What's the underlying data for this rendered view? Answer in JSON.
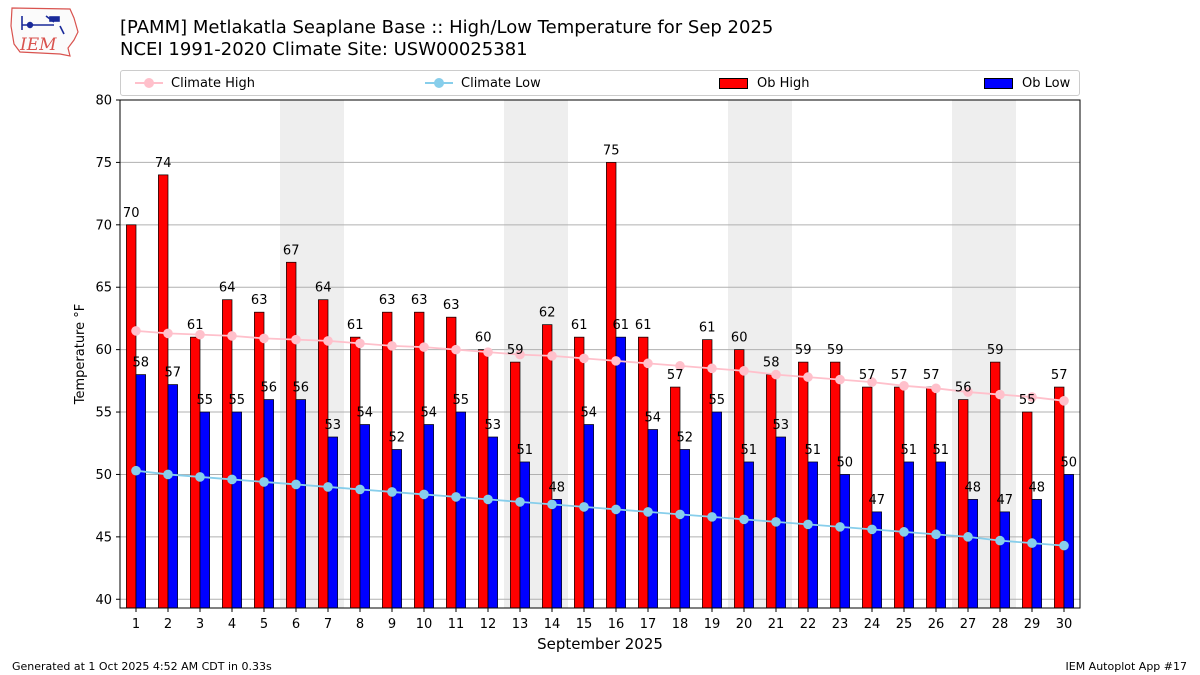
{
  "header": {
    "logo_text": "IEM",
    "title_line1": "[PAMM] Metlakatla Seaplane Base :: High/Low Temperature for Sep 2025",
    "title_line2": "NCEI 1991-2020 Climate Site: USW00025381"
  },
  "legend": {
    "climate_high": "Climate High",
    "climate_low": "Climate Low",
    "ob_high": "Ob High",
    "ob_low": "Ob Low"
  },
  "colors": {
    "ob_high": "#ff0000",
    "ob_low": "#0000ff",
    "climate_high": "#ffc0cb",
    "climate_low": "#87ceeb",
    "weekend_shade": "#eeeeee",
    "grid": "#b0b0b0"
  },
  "footer": {
    "generated": "Generated at 1 Oct 2025 4:52 AM CDT in 0.33s",
    "app": "IEM Autoplot App #17"
  },
  "chart_data": {
    "type": "bar",
    "xlabel": "September 2025",
    "ylabel": "Temperature °F",
    "ylim": [
      39.3,
      80
    ],
    "yticks": [
      40,
      45,
      50,
      55,
      60,
      65,
      70,
      75,
      80
    ],
    "grid": true,
    "categories": [
      "1",
      "2",
      "3",
      "4",
      "5",
      "6",
      "7",
      "8",
      "9",
      "10",
      "11",
      "12",
      "13",
      "14",
      "15",
      "16",
      "17",
      "18",
      "19",
      "20",
      "21",
      "22",
      "23",
      "24",
      "25",
      "26",
      "27",
      "28",
      "29",
      "30"
    ],
    "shaded_days": [
      6,
      7,
      13,
      14,
      20,
      21,
      27,
      28
    ],
    "series": [
      {
        "name": "Ob High",
        "kind": "bar",
        "values": [
          70,
          74,
          61,
          64,
          63,
          67,
          64,
          61,
          63,
          63,
          62.6,
          60,
          59,
          62,
          61,
          75,
          61,
          57,
          60.8,
          60,
          58,
          59,
          59,
          57,
          57,
          57,
          56,
          59,
          55,
          57
        ],
        "labels": [
          "70",
          "74",
          "61",
          "64",
          "63",
          "67",
          "64",
          "61",
          "63",
          "63",
          "63",
          "60",
          "59",
          "62",
          "61",
          "75",
          "61",
          "57",
          "61",
          "60",
          "58",
          "59",
          "59",
          "57",
          "57",
          "57",
          "56",
          "59",
          "55",
          "57"
        ]
      },
      {
        "name": "Ob Low",
        "kind": "bar",
        "values": [
          58,
          57.2,
          55,
          55,
          56,
          56,
          53,
          54,
          52,
          54,
          55,
          53,
          51,
          48,
          54,
          61,
          53.6,
          52,
          55,
          51,
          53,
          51,
          50,
          47,
          51,
          51,
          48,
          47,
          48,
          50
        ],
        "labels": [
          "58",
          "57",
          "55",
          "55",
          "56",
          "56",
          "53",
          "54",
          "52",
          "54",
          "55",
          "53",
          "51",
          "48",
          "54",
          "61",
          "54",
          "52",
          "55",
          "51",
          "53",
          "51",
          "50",
          "47",
          "51",
          "51",
          "48",
          "47",
          "48",
          "50"
        ]
      },
      {
        "name": "Climate High",
        "kind": "line",
        "values": [
          61.5,
          61.3,
          61.2,
          61.1,
          60.9,
          60.8,
          60.7,
          60.5,
          60.3,
          60.2,
          60.0,
          59.8,
          59.6,
          59.5,
          59.3,
          59.1,
          58.9,
          58.7,
          58.5,
          58.3,
          58.0,
          57.8,
          57.6,
          57.4,
          57.1,
          56.9,
          56.6,
          56.4,
          56.2,
          55.9
        ]
      },
      {
        "name": "Climate Low",
        "kind": "line",
        "values": [
          50.3,
          50.0,
          49.8,
          49.6,
          49.4,
          49.2,
          49.0,
          48.8,
          48.6,
          48.4,
          48.2,
          48.0,
          47.8,
          47.6,
          47.4,
          47.2,
          47.0,
          46.8,
          46.6,
          46.4,
          46.2,
          46.0,
          45.8,
          45.6,
          45.4,
          45.2,
          45.0,
          44.7,
          44.5,
          44.3
        ]
      }
    ]
  }
}
